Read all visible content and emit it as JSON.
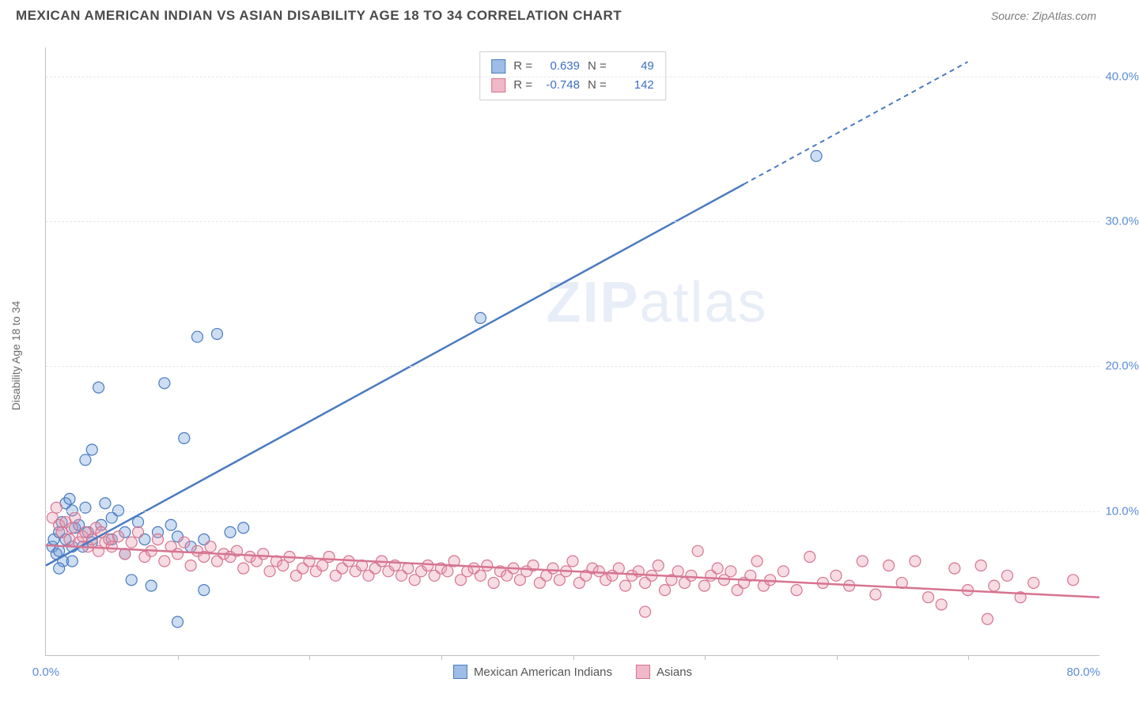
{
  "title": "MEXICAN AMERICAN INDIAN VS ASIAN DISABILITY AGE 18 TO 34 CORRELATION CHART",
  "source": "Source: ZipAtlas.com",
  "watermark_a": "ZIP",
  "watermark_b": "atlas",
  "chart": {
    "type": "scatter",
    "background_color": "#ffffff",
    "grid_color": "#e8e8e8",
    "axis_color": "#c0c0c0",
    "tick_color": "#5b8dd6",
    "ylabel": "Disability Age 18 to 34",
    "label_fontsize": 14,
    "label_color": "#6a6a6a",
    "xlim": [
      0,
      80
    ],
    "ylim": [
      0,
      42
    ],
    "xticks": [
      0,
      80
    ],
    "xtick_labels": [
      "0.0%",
      "80.0%"
    ],
    "xtick_marks": [
      10,
      20,
      30,
      40,
      50,
      60,
      70
    ],
    "yticks": [
      10,
      20,
      30,
      40
    ],
    "ytick_labels": [
      "10.0%",
      "20.0%",
      "30.0%",
      "40.0%"
    ],
    "marker_radius": 7,
    "marker_opacity": 0.35,
    "series": [
      {
        "name": "Mexican American Indians",
        "color": "#6f9edb",
        "stroke": "#4a7bc0",
        "fill": "#9ebce5",
        "R": "0.639",
        "N": "49",
        "trend": {
          "x0": 0,
          "y0": 6.2,
          "x1": 70,
          "y1": 41,
          "dash_from_x": 53
        },
        "points": [
          [
            0.5,
            7.5
          ],
          [
            0.6,
            8.0
          ],
          [
            0.8,
            7.0
          ],
          [
            1.0,
            8.5
          ],
          [
            1.0,
            7.2
          ],
          [
            1.2,
            9.2
          ],
          [
            1.3,
            6.5
          ],
          [
            1.5,
            10.5
          ],
          [
            1.5,
            8.0
          ],
          [
            1.8,
            10.8
          ],
          [
            2.0,
            7.5
          ],
          [
            2.0,
            10.0
          ],
          [
            2.2,
            8.8
          ],
          [
            2.5,
            9.0
          ],
          [
            2.8,
            7.5
          ],
          [
            3.0,
            10.2
          ],
          [
            3.0,
            13.5
          ],
          [
            3.2,
            8.5
          ],
          [
            3.5,
            14.2
          ],
          [
            3.5,
            7.8
          ],
          [
            4.0,
            18.5
          ],
          [
            4.2,
            9.0
          ],
          [
            4.5,
            10.5
          ],
          [
            5.0,
            8.0
          ],
          [
            5.0,
            9.5
          ],
          [
            5.5,
            10.0
          ],
          [
            6.0,
            7.0
          ],
          [
            6.0,
            8.5
          ],
          [
            6.5,
            5.2
          ],
          [
            7.0,
            9.2
          ],
          [
            7.5,
            8.0
          ],
          [
            8.0,
            4.8
          ],
          [
            8.5,
            8.5
          ],
          [
            9.0,
            18.8
          ],
          [
            9.5,
            9.0
          ],
          [
            10.0,
            8.2
          ],
          [
            10.5,
            15.0
          ],
          [
            11.0,
            7.5
          ],
          [
            11.5,
            22.0
          ],
          [
            12.0,
            4.5
          ],
          [
            12.0,
            8.0
          ],
          [
            13.0,
            22.2
          ],
          [
            14.0,
            8.5
          ],
          [
            15.0,
            8.8
          ],
          [
            10.0,
            2.3
          ],
          [
            33.0,
            23.3
          ],
          [
            58.5,
            34.5
          ],
          [
            1.0,
            6.0
          ],
          [
            2.0,
            6.5
          ]
        ]
      },
      {
        "name": "Asians",
        "color": "#e89ab0",
        "stroke": "#d67490",
        "fill": "#f0b8c8",
        "R": "-0.748",
        "N": "142",
        "trend": {
          "x0": 0,
          "y0": 7.6,
          "x1": 80,
          "y1": 4.0,
          "dash_from_x": 80
        },
        "points": [
          [
            0.5,
            9.5
          ],
          [
            0.8,
            10.2
          ],
          [
            1.0,
            9.0
          ],
          [
            1.2,
            8.5
          ],
          [
            1.5,
            9.2
          ],
          [
            1.8,
            8.0
          ],
          [
            2.0,
            8.8
          ],
          [
            2.2,
            9.5
          ],
          [
            2.5,
            7.8
          ],
          [
            2.8,
            8.2
          ],
          [
            3.0,
            8.5
          ],
          [
            3.2,
            7.5
          ],
          [
            3.5,
            8.0
          ],
          [
            3.8,
            8.8
          ],
          [
            4.0,
            7.2
          ],
          [
            4.2,
            8.5
          ],
          [
            4.5,
            7.8
          ],
          [
            4.8,
            8.0
          ],
          [
            5.0,
            7.5
          ],
          [
            5.5,
            8.2
          ],
          [
            6.0,
            7.0
          ],
          [
            6.5,
            7.8
          ],
          [
            7.0,
            8.5
          ],
          [
            7.5,
            6.8
          ],
          [
            8.0,
            7.2
          ],
          [
            8.5,
            8.0
          ],
          [
            9.0,
            6.5
          ],
          [
            9.5,
            7.5
          ],
          [
            10.0,
            7.0
          ],
          [
            10.5,
            7.8
          ],
          [
            11.0,
            6.2
          ],
          [
            11.5,
            7.2
          ],
          [
            12.0,
            6.8
          ],
          [
            12.5,
            7.5
          ],
          [
            13.0,
            6.5
          ],
          [
            13.5,
            7.0
          ],
          [
            14.0,
            6.8
          ],
          [
            14.5,
            7.2
          ],
          [
            15.0,
            6.0
          ],
          [
            15.5,
            6.8
          ],
          [
            16.0,
            6.5
          ],
          [
            16.5,
            7.0
          ],
          [
            17.0,
            5.8
          ],
          [
            17.5,
            6.5
          ],
          [
            18.0,
            6.2
          ],
          [
            18.5,
            6.8
          ],
          [
            19.0,
            5.5
          ],
          [
            19.5,
            6.0
          ],
          [
            20.0,
            6.5
          ],
          [
            20.5,
            5.8
          ],
          [
            21.0,
            6.2
          ],
          [
            21.5,
            6.8
          ],
          [
            22.0,
            5.5
          ],
          [
            22.5,
            6.0
          ],
          [
            23.0,
            6.5
          ],
          [
            23.5,
            5.8
          ],
          [
            24.0,
            6.2
          ],
          [
            24.5,
            5.5
          ],
          [
            25.0,
            6.0
          ],
          [
            25.5,
            6.5
          ],
          [
            26.0,
            5.8
          ],
          [
            26.5,
            6.2
          ],
          [
            27.0,
            5.5
          ],
          [
            27.5,
            6.0
          ],
          [
            28.0,
            5.2
          ],
          [
            28.5,
            5.8
          ],
          [
            29.0,
            6.2
          ],
          [
            29.5,
            5.5
          ],
          [
            30.0,
            6.0
          ],
          [
            30.5,
            5.8
          ],
          [
            31.0,
            6.5
          ],
          [
            31.5,
            5.2
          ],
          [
            32.0,
            5.8
          ],
          [
            32.5,
            6.0
          ],
          [
            33.0,
            5.5
          ],
          [
            33.5,
            6.2
          ],
          [
            34.0,
            5.0
          ],
          [
            34.5,
            5.8
          ],
          [
            35.0,
            5.5
          ],
          [
            35.5,
            6.0
          ],
          [
            36.0,
            5.2
          ],
          [
            36.5,
            5.8
          ],
          [
            37.0,
            6.2
          ],
          [
            37.5,
            5.0
          ],
          [
            38.0,
            5.5
          ],
          [
            38.5,
            6.0
          ],
          [
            39.0,
            5.2
          ],
          [
            39.5,
            5.8
          ],
          [
            40.0,
            6.5
          ],
          [
            40.5,
            5.0
          ],
          [
            41.0,
            5.5
          ],
          [
            41.5,
            6.0
          ],
          [
            42.0,
            5.8
          ],
          [
            42.5,
            5.2
          ],
          [
            43.0,
            5.5
          ],
          [
            43.5,
            6.0
          ],
          [
            44.0,
            4.8
          ],
          [
            44.5,
            5.5
          ],
          [
            45.0,
            5.8
          ],
          [
            45.5,
            5.0
          ],
          [
            46.0,
            5.5
          ],
          [
            46.5,
            6.2
          ],
          [
            47.0,
            4.5
          ],
          [
            47.5,
            5.2
          ],
          [
            48.0,
            5.8
          ],
          [
            48.5,
            5.0
          ],
          [
            49.0,
            5.5
          ],
          [
            49.5,
            7.2
          ],
          [
            50.0,
            4.8
          ],
          [
            50.5,
            5.5
          ],
          [
            51.0,
            6.0
          ],
          [
            51.5,
            5.2
          ],
          [
            52.0,
            5.8
          ],
          [
            52.5,
            4.5
          ],
          [
            53.0,
            5.0
          ],
          [
            53.5,
            5.5
          ],
          [
            54.0,
            6.5
          ],
          [
            54.5,
            4.8
          ],
          [
            55.0,
            5.2
          ],
          [
            56.0,
            5.8
          ],
          [
            57.0,
            4.5
          ],
          [
            58.0,
            6.8
          ],
          [
            59.0,
            5.0
          ],
          [
            60.0,
            5.5
          ],
          [
            61.0,
            4.8
          ],
          [
            62.0,
            6.5
          ],
          [
            63.0,
            4.2
          ],
          [
            64.0,
            6.2
          ],
          [
            65.0,
            5.0
          ],
          [
            66.0,
            6.5
          ],
          [
            67.0,
            4.0
          ],
          [
            68.0,
            3.5
          ],
          [
            69.0,
            6.0
          ],
          [
            70.0,
            4.5
          ],
          [
            71.0,
            6.2
          ],
          [
            72.0,
            4.8
          ],
          [
            73.0,
            5.5
          ],
          [
            74.0,
            4.0
          ],
          [
            75.0,
            5.0
          ],
          [
            45.5,
            3.0
          ],
          [
            71.5,
            2.5
          ],
          [
            78.0,
            5.2
          ]
        ]
      }
    ]
  },
  "stats_box": {
    "R_label": "R =",
    "N_label": "N ="
  }
}
